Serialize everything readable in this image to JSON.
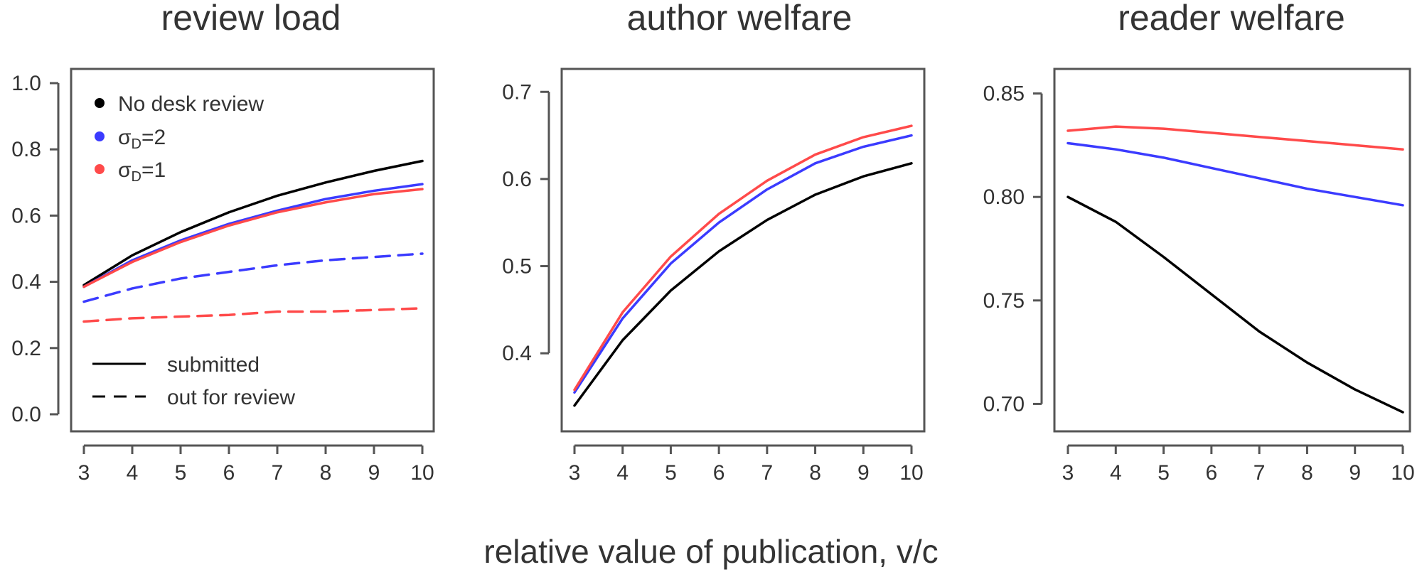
{
  "figure": {
    "xlabel": "relative value of publication, v/c"
  },
  "colors": {
    "no_desk": "#000000",
    "sigma2": "#3b3bff",
    "sigma1": "#ff4a4a"
  },
  "legend": {
    "entries": [
      {
        "label": "No desk review",
        "color": "#000000"
      },
      {
        "label": "σ",
        "sub": "D",
        "suffix": "=2",
        "color": "#3b3bff"
      },
      {
        "label": "σ",
        "sub": "D",
        "suffix": "=1",
        "color": "#ff4a4a"
      }
    ],
    "styles": [
      {
        "label": "submitted",
        "dash": "solid"
      },
      {
        "label": "out for review",
        "dash": "dashed"
      }
    ]
  },
  "chart_data": [
    {
      "type": "line",
      "title": "review load",
      "x": [
        3,
        4,
        5,
        6,
        7,
        8,
        9,
        10
      ],
      "xlim": [
        3,
        10
      ],
      "ylim": [
        0.0,
        1.0
      ],
      "xticks": [
        "3",
        "4",
        "5",
        "6",
        "7",
        "8",
        "9",
        "10"
      ],
      "yticks": [
        {
          "v": 0.0,
          "t": "0.0"
        },
        {
          "v": 0.2,
          "t": "0.2"
        },
        {
          "v": 0.4,
          "t": "0.4"
        },
        {
          "v": 0.6,
          "t": "0.6"
        },
        {
          "v": 0.8,
          "t": "0.8"
        },
        {
          "v": 1.0,
          "t": "1.0"
        }
      ],
      "series": [
        {
          "color": "#000000",
          "dash": "solid",
          "values": [
            0.39,
            0.48,
            0.55,
            0.61,
            0.66,
            0.7,
            0.735,
            0.765
          ]
        },
        {
          "color": "#3b3bff",
          "dash": "solid",
          "values": [
            0.385,
            0.465,
            0.525,
            0.575,
            0.615,
            0.65,
            0.675,
            0.695
          ]
        },
        {
          "color": "#ff4a4a",
          "dash": "solid",
          "values": [
            0.385,
            0.46,
            0.52,
            0.57,
            0.61,
            0.64,
            0.665,
            0.68
          ]
        },
        {
          "color": "#3b3bff",
          "dash": "dashed",
          "values": [
            0.34,
            0.38,
            0.41,
            0.43,
            0.45,
            0.465,
            0.475,
            0.485
          ]
        },
        {
          "color": "#ff4a4a",
          "dash": "dashed",
          "values": [
            0.28,
            0.29,
            0.295,
            0.3,
            0.31,
            0.31,
            0.315,
            0.32
          ]
        }
      ]
    },
    {
      "type": "line",
      "title": "author welfare",
      "x": [
        3,
        4,
        5,
        6,
        7,
        8,
        9,
        10
      ],
      "xlim": [
        3,
        10
      ],
      "ylim": [
        0.33,
        0.71
      ],
      "xticks": [
        "3",
        "4",
        "5",
        "6",
        "7",
        "8",
        "9",
        "10"
      ],
      "yticks": [
        {
          "v": 0.4,
          "t": "0.4"
        },
        {
          "v": 0.5,
          "t": "0.5"
        },
        {
          "v": 0.6,
          "t": "0.6"
        },
        {
          "v": 0.7,
          "t": "0.7"
        }
      ],
      "series": [
        {
          "color": "#000000",
          "dash": "solid",
          "values": [
            0.34,
            0.415,
            0.472,
            0.517,
            0.553,
            0.582,
            0.603,
            0.618
          ]
        },
        {
          "color": "#3b3bff",
          "dash": "solid",
          "values": [
            0.355,
            0.44,
            0.503,
            0.55,
            0.588,
            0.618,
            0.637,
            0.65
          ]
        },
        {
          "color": "#ff4a4a",
          "dash": "solid",
          "values": [
            0.358,
            0.447,
            0.511,
            0.56,
            0.598,
            0.628,
            0.648,
            0.661
          ]
        }
      ]
    },
    {
      "type": "line",
      "title": "reader welfare",
      "x": [
        3,
        4,
        5,
        6,
        7,
        8,
        9,
        10
      ],
      "xlim": [
        3,
        10
      ],
      "ylim": [
        0.695,
        0.855
      ],
      "xticks": [
        "3",
        "4",
        "5",
        "6",
        "7",
        "8",
        "9",
        "10"
      ],
      "yticks": [
        {
          "v": 0.7,
          "t": "0.70"
        },
        {
          "v": 0.75,
          "t": "0.75"
        },
        {
          "v": 0.8,
          "t": "0.80"
        },
        {
          "v": 0.85,
          "t": "0.85"
        }
      ],
      "series": [
        {
          "color": "#000000",
          "dash": "solid",
          "values": [
            0.8,
            0.788,
            0.771,
            0.753,
            0.735,
            0.72,
            0.707,
            0.696
          ]
        },
        {
          "color": "#3b3bff",
          "dash": "solid",
          "values": [
            0.826,
            0.823,
            0.819,
            0.814,
            0.809,
            0.804,
            0.8,
            0.796
          ]
        },
        {
          "color": "#ff4a4a",
          "dash": "solid",
          "values": [
            0.832,
            0.834,
            0.833,
            0.831,
            0.829,
            0.827,
            0.825,
            0.823
          ]
        }
      ]
    }
  ]
}
